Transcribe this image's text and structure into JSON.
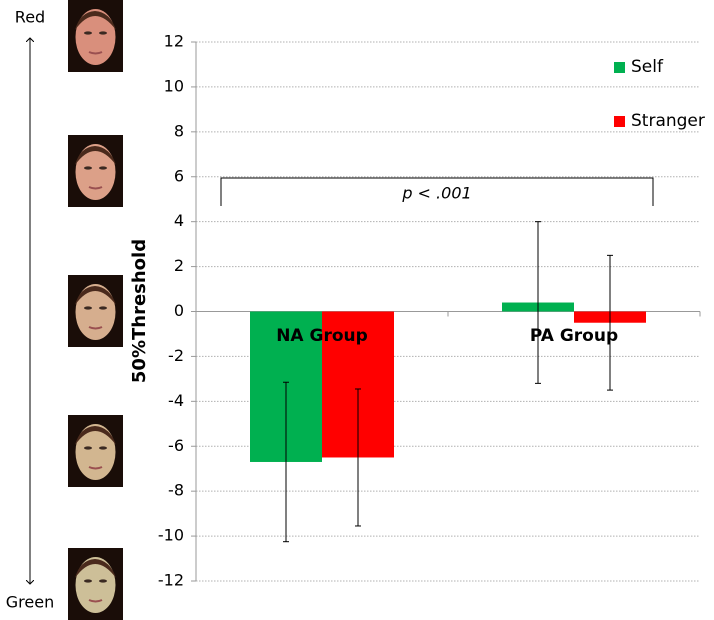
{
  "chart_data": {
    "type": "bar",
    "y_label": "50%Threshold",
    "categories": [
      "NA Group",
      "PA Group"
    ],
    "series": [
      {
        "name": "Self",
        "color": "#00b050",
        "values": [
          -6.7,
          0.4
        ],
        "errors": [
          3.55,
          3.6
        ]
      },
      {
        "name": "Stranger",
        "color": "#ff0000",
        "values": [
          -6.5,
          -0.5
        ],
        "errors": [
          3.05,
          3.0
        ]
      }
    ],
    "ylim": [
      -12,
      12
    ],
    "yticks": [
      -12,
      -10,
      -8,
      -6,
      -4,
      -2,
      0,
      2,
      4,
      6,
      8,
      10,
      12
    ],
    "grid": true,
    "legend": "upper right",
    "annotation": "p < .001",
    "scale_top": "Red",
    "scale_bottom": "Green"
  }
}
